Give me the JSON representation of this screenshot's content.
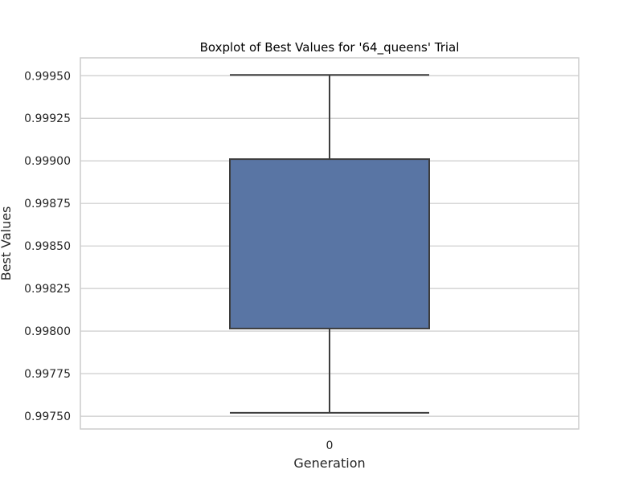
{
  "chart_data": {
    "type": "box",
    "title": "Boxplot of Best Values for '64_queens' Trial",
    "xlabel": "Generation",
    "ylabel": "Best Values",
    "categories": [
      "0"
    ],
    "series": [
      {
        "category": "0",
        "whisker_low": 0.99752,
        "q1": 0.998015,
        "q3": 0.99901,
        "whisker_high": 0.999505
      }
    ],
    "yticks": [
      0.9975,
      0.99775,
      0.998,
      0.99825,
      0.9985,
      0.99875,
      0.999,
      0.99925,
      0.9995
    ],
    "ytick_labels": [
      "0.99750",
      "0.99775",
      "0.99800",
      "0.99825",
      "0.99850",
      "0.99875",
      "0.99900",
      "0.99925",
      "0.99950"
    ],
    "ylim": [
      0.997425,
      0.999605
    ],
    "grid": true,
    "colors": {
      "box_fill": "#5975a4",
      "box_edge": "#3d3d3d",
      "grid": "#cccccc",
      "frame": "#cccccc"
    }
  }
}
